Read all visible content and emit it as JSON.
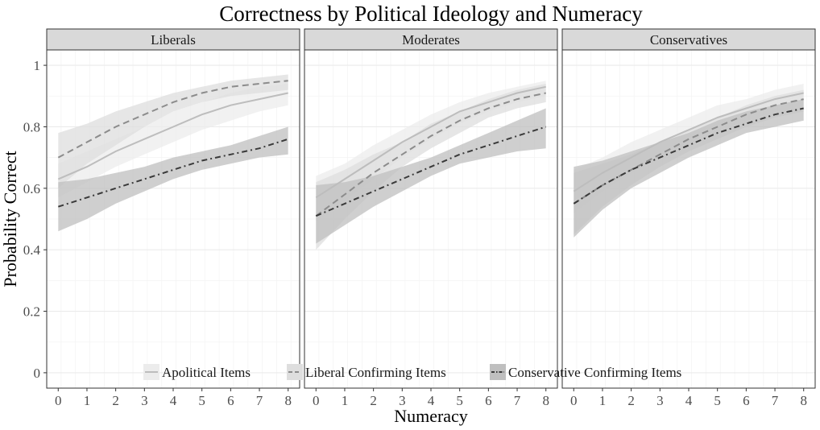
{
  "chart_data": {
    "type": "line",
    "title": "Correctness by Political Ideology and Numeracy",
    "xlabel": "Numeracy",
    "ylabel": "Probability Correct",
    "x": [
      0,
      1,
      2,
      3,
      4,
      5,
      6,
      7,
      8
    ],
    "xlim": [
      -0.4,
      8.4
    ],
    "ylim": [
      -0.05,
      1.05
    ],
    "x_ticks": [
      "0",
      "1",
      "2",
      "3",
      "4",
      "5",
      "6",
      "7",
      "8"
    ],
    "y_ticks": [
      "0",
      "0.2",
      "0.4",
      "0.6",
      "0.8",
      "1"
    ],
    "grid": true,
    "legend_position": "bottom-inside",
    "legend": [
      {
        "label": "Apolitical Items",
        "line_color": "#bdbdbd",
        "dash": "solid",
        "band_color": "#ececec"
      },
      {
        "label": "Liberal Confirming Items",
        "line_color": "#8c8c8c",
        "dash": "dashed",
        "band_color": "#dedede"
      },
      {
        "label": "Conservative Confirming Items",
        "line_color": "#3a3a3a",
        "dash": "dotdash",
        "band_color": "#bfbfbf"
      }
    ],
    "panels": [
      {
        "label": "Liberals",
        "series": [
          {
            "name": "Apolitical Items",
            "values": [
              0.63,
              0.67,
              0.72,
              0.76,
              0.8,
              0.84,
              0.87,
              0.89,
              0.91
            ],
            "lower": [
              0.57,
              0.62,
              0.67,
              0.71,
              0.75,
              0.79,
              0.82,
              0.85,
              0.87
            ],
            "upper": [
              0.68,
              0.72,
              0.76,
              0.8,
              0.85,
              0.88,
              0.91,
              0.93,
              0.94
            ]
          },
          {
            "name": "Liberal Confirming Items",
            "values": [
              0.7,
              0.75,
              0.8,
              0.84,
              0.88,
              0.91,
              0.93,
              0.94,
              0.95
            ],
            "lower": [
              0.6,
              0.68,
              0.74,
              0.8,
              0.85,
              0.88,
              0.9,
              0.91,
              0.92
            ],
            "upper": [
              0.78,
              0.81,
              0.85,
              0.88,
              0.91,
              0.93,
              0.95,
              0.96,
              0.97
            ]
          },
          {
            "name": "Conservative Confirming Items",
            "values": [
              0.54,
              0.57,
              0.6,
              0.63,
              0.66,
              0.69,
              0.71,
              0.73,
              0.76
            ],
            "lower": [
              0.46,
              0.5,
              0.55,
              0.59,
              0.63,
              0.66,
              0.68,
              0.7,
              0.71
            ],
            "upper": [
              0.62,
              0.63,
              0.65,
              0.67,
              0.7,
              0.72,
              0.74,
              0.77,
              0.8
            ]
          }
        ]
      },
      {
        "label": "Moderates",
        "series": [
          {
            "name": "Apolitical Items",
            "values": [
              0.57,
              0.63,
              0.69,
              0.75,
              0.8,
              0.85,
              0.88,
              0.91,
              0.93
            ],
            "lower": [
              0.49,
              0.56,
              0.63,
              0.7,
              0.76,
              0.81,
              0.85,
              0.88,
              0.9
            ],
            "upper": [
              0.64,
              0.68,
              0.74,
              0.79,
              0.84,
              0.88,
              0.91,
              0.93,
              0.95
            ]
          },
          {
            "name": "Liberal Confirming Items",
            "values": [
              0.51,
              0.58,
              0.65,
              0.71,
              0.77,
              0.82,
              0.86,
              0.89,
              0.91
            ],
            "lower": [
              0.4,
              0.5,
              0.59,
              0.67,
              0.73,
              0.78,
              0.83,
              0.86,
              0.88
            ],
            "upper": [
              0.62,
              0.66,
              0.71,
              0.75,
              0.81,
              0.85,
              0.89,
              0.92,
              0.94
            ]
          },
          {
            "name": "Conservative Confirming Items",
            "values": [
              0.51,
              0.55,
              0.59,
              0.63,
              0.67,
              0.71,
              0.74,
              0.77,
              0.8
            ],
            "lower": [
              0.42,
              0.48,
              0.54,
              0.59,
              0.64,
              0.68,
              0.7,
              0.72,
              0.73
            ],
            "upper": [
              0.61,
              0.62,
              0.64,
              0.67,
              0.7,
              0.74,
              0.78,
              0.82,
              0.86
            ]
          }
        ]
      },
      {
        "label": "Conservatives",
        "series": [
          {
            "name": "Apolitical Items",
            "values": [
              0.59,
              0.65,
              0.7,
              0.75,
              0.79,
              0.83,
              0.86,
              0.89,
              0.91
            ],
            "lower": [
              0.52,
              0.59,
              0.65,
              0.7,
              0.75,
              0.8,
              0.84,
              0.87,
              0.89
            ],
            "upper": [
              0.66,
              0.7,
              0.75,
              0.79,
              0.83,
              0.87,
              0.89,
              0.92,
              0.94
            ]
          },
          {
            "name": "Liberal Confirming Items",
            "values": [
              0.55,
              0.61,
              0.66,
              0.71,
              0.76,
              0.8,
              0.84,
              0.87,
              0.89
            ],
            "lower": [
              0.45,
              0.54,
              0.61,
              0.67,
              0.72,
              0.76,
              0.8,
              0.83,
              0.85
            ],
            "upper": [
              0.65,
              0.68,
              0.71,
              0.75,
              0.79,
              0.83,
              0.87,
              0.9,
              0.92
            ]
          },
          {
            "name": "Conservative Confirming Items",
            "values": [
              0.55,
              0.61,
              0.66,
              0.7,
              0.74,
              0.78,
              0.81,
              0.84,
              0.86
            ],
            "lower": [
              0.44,
              0.53,
              0.6,
              0.65,
              0.7,
              0.74,
              0.78,
              0.8,
              0.82
            ],
            "upper": [
              0.67,
              0.69,
              0.72,
              0.75,
              0.78,
              0.82,
              0.85,
              0.87,
              0.89
            ]
          }
        ]
      }
    ]
  }
}
